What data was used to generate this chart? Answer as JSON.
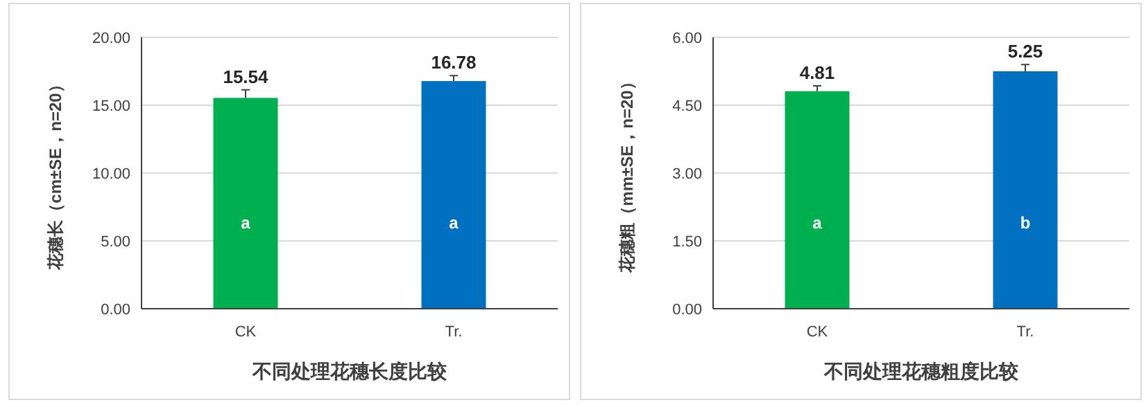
{
  "chart_data": [
    {
      "type": "bar",
      "xlabel": "不同处理花穗长度比较",
      "ylabel": "花穗长（cm±SE，n=20）",
      "categories": [
        "CK",
        "Tr."
      ],
      "values": [
        15.54,
        16.78
      ],
      "colors": [
        "#00b050",
        "#0070c0"
      ],
      "errors": [
        0.6,
        0.4
      ],
      "data_labels": true,
      "ylim": [
        0,
        20
      ],
      "yticks": [
        {
          "value": 0,
          "label": "0.00"
        },
        {
          "value": 5,
          "label": "5.00"
        },
        {
          "value": 10,
          "label": "10.00"
        },
        {
          "value": 15,
          "label": "15.00"
        },
        {
          "value": 20,
          "label": "20.00"
        }
      ],
      "grid": "y",
      "annotations": [
        "a",
        "a"
      ]
    },
    {
      "type": "bar",
      "xlabel": "不同处理花穗粗度比较",
      "ylabel": "花穗粗（mm±SE，n=20）",
      "categories": [
        "CK",
        "Tr."
      ],
      "values": [
        4.81,
        5.25
      ],
      "colors": [
        "#00b050",
        "#0070c0"
      ],
      "errors": [
        0.12,
        0.15
      ],
      "data_labels": true,
      "ylim": [
        0,
        6
      ],
      "yticks": [
        {
          "value": 0,
          "label": "0.00"
        },
        {
          "value": 1.5,
          "label": "1.50"
        },
        {
          "value": 3,
          "label": "3.00"
        },
        {
          "value": 4.5,
          "label": "4.50"
        },
        {
          "value": 6,
          "label": "6.00"
        }
      ],
      "grid": "y",
      "annotations": [
        "a",
        "b"
      ]
    }
  ]
}
